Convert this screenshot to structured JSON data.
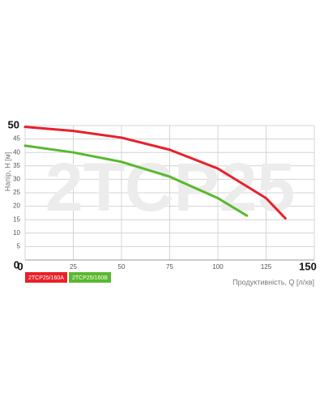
{
  "chart_data": {
    "type": "line",
    "watermark": "2TCP25",
    "x_label": "Продуктивність, Q [л/хв]",
    "y_label": "Напір, H [м]",
    "xlim": [
      0,
      150
    ],
    "xticks": [
      0,
      25,
      50,
      75,
      100,
      125,
      150
    ],
    "ylim": [
      0,
      50
    ],
    "yticks": [
      0,
      5,
      10,
      15,
      20,
      25,
      30,
      35,
      40,
      45,
      50
    ],
    "grid": true,
    "series": [
      {
        "name": "2TCP25/160A",
        "color": "#e8202a",
        "x": [
          0,
          25,
          50,
          75,
          100,
          125,
          135
        ],
        "values": [
          49.5,
          48,
          45.5,
          41,
          34,
          23,
          15.5
        ]
      },
      {
        "name": "2TCP25/160B",
        "color": "#5ab82e",
        "x": [
          0,
          25,
          50,
          75,
          100,
          115
        ],
        "values": [
          42.5,
          40,
          36.5,
          31,
          23,
          16.5
        ]
      }
    ]
  }
}
